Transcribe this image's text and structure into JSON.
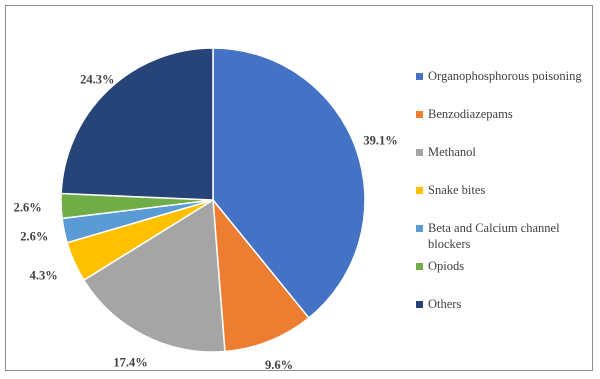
{
  "chart_data": {
    "type": "pie",
    "title": "",
    "legend_position": "right",
    "slices": [
      {
        "label": "Organophosphorous poisoning",
        "value": 39.1,
        "display": "39.1%",
        "color": "#4472C4"
      },
      {
        "label": "Benzodiazepams",
        "value": 9.6,
        "display": "9.6%",
        "color": "#ED7D31"
      },
      {
        "label": "Methanol",
        "value": 17.4,
        "display": "17.4%",
        "color": "#A5A5A5"
      },
      {
        "label": "Snake bites",
        "value": 4.3,
        "display": "4.3%",
        "color": "#FFC000"
      },
      {
        "label": "Beta and Calcium channel blockers",
        "value": 2.6,
        "display": "2.6%",
        "color": "#5B9BD5"
      },
      {
        "label": "Opiods",
        "value": 2.6,
        "display": "2.6%",
        "color": "#70AD47"
      },
      {
        "label": "Others",
        "value": 24.3,
        "display": "24.3%",
        "color": "#264478"
      }
    ]
  }
}
